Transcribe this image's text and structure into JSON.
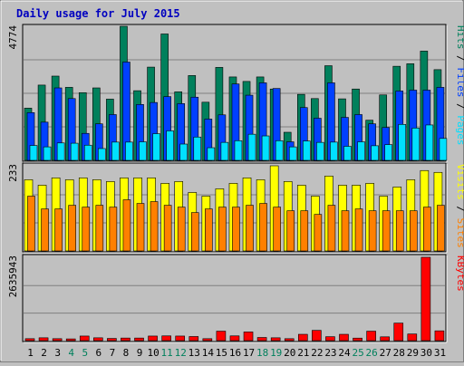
{
  "title": "Daily usage for July 2015",
  "colors": {
    "background": "#c0c0c0",
    "title": "#0000c0",
    "hits": "#00805c",
    "files": "#0040ff",
    "pages": "#00e0ff",
    "visits": "#ffff00",
    "sites": "#ff8000",
    "kbytes": "#ff0000",
    "weekend_day": "#00805c",
    "weekday": "#000000"
  },
  "chart_data": [
    {
      "type": "bar",
      "panel": "hits-files-pages",
      "ymax_label": "4774",
      "legend": {
        "pages": "Pages",
        "files": "Files",
        "hits": "Hits",
        "sep": " / "
      },
      "ylim": [
        0,
        4774
      ],
      "categories": [
        "1",
        "2",
        "3",
        "4",
        "5",
        "6",
        "7",
        "8",
        "9",
        "10",
        "11",
        "12",
        "13",
        "14",
        "15",
        "16",
        "17",
        "18",
        "19",
        "20",
        "21",
        "22",
        "23",
        "24",
        "25",
        "26",
        "27",
        "28",
        "29",
        "30",
        "31"
      ],
      "series": [
        {
          "name": "Hits",
          "values": [
            1860,
            2680,
            3000,
            2600,
            2410,
            2580,
            2180,
            4774,
            2480,
            3320,
            4500,
            2440,
            3020,
            2070,
            3310,
            2970,
            2810,
            2970,
            2540,
            1000,
            2350,
            2200,
            3370,
            2190,
            2540,
            1430,
            2330,
            3350,
            3440,
            3890,
            3230
          ]
        },
        {
          "name": "Files",
          "values": [
            1700,
            1360,
            2580,
            2200,
            960,
            1300,
            1630,
            3500,
            1990,
            2060,
            2270,
            2020,
            2250,
            1470,
            1620,
            2720,
            2320,
            2760,
            2560,
            660,
            1880,
            1500,
            2760,
            1530,
            1630,
            1300,
            1170,
            2470,
            2500,
            2500,
            2600
          ]
        },
        {
          "name": "Pages",
          "values": [
            530,
            480,
            620,
            610,
            540,
            420,
            650,
            650,
            660,
            950,
            1050,
            580,
            830,
            450,
            640,
            700,
            930,
            870,
            700,
            480,
            690,
            640,
            650,
            500,
            660,
            520,
            560,
            1280,
            1150,
            1260,
            780
          ]
        }
      ]
    },
    {
      "type": "bar",
      "panel": "visits-sites",
      "ymax_label": "233",
      "legend": {
        "sites": "Sites",
        "visits": "Visits",
        "sep": " / "
      },
      "ylim": [
        0,
        233
      ],
      "categories": [
        "1",
        "2",
        "3",
        "4",
        "5",
        "6",
        "7",
        "8",
        "9",
        "10",
        "11",
        "12",
        "13",
        "14",
        "15",
        "16",
        "17",
        "18",
        "19",
        "20",
        "21",
        "22",
        "23",
        "24",
        "25",
        "26",
        "27",
        "28",
        "29",
        "30",
        "31"
      ],
      "series": [
        {
          "name": "Visits",
          "values": [
            195,
            180,
            200,
            195,
            200,
            195,
            190,
            200,
            200,
            200,
            185,
            190,
            160,
            150,
            170,
            185,
            200,
            195,
            233,
            190,
            180,
            150,
            205,
            180,
            180,
            185,
            150,
            175,
            195,
            220,
            215
          ]
        },
        {
          "name": "Sites",
          "values": [
            150,
            115,
            115,
            125,
            120,
            125,
            120,
            140,
            130,
            135,
            125,
            120,
            105,
            115,
            120,
            120,
            125,
            130,
            120,
            110,
            110,
            100,
            125,
            110,
            115,
            110,
            110,
            110,
            110,
            120,
            125
          ]
        }
      ]
    },
    {
      "type": "bar",
      "panel": "kbytes",
      "ymax_label": "2635943",
      "legend": {
        "kbytes": "KBytes"
      },
      "ylim": [
        0,
        2635943
      ],
      "categories": [
        "1",
        "2",
        "3",
        "4",
        "5",
        "6",
        "7",
        "8",
        "9",
        "10",
        "11",
        "12",
        "13",
        "14",
        "15",
        "16",
        "17",
        "18",
        "19",
        "20",
        "21",
        "22",
        "23",
        "24",
        "25",
        "26",
        "27",
        "28",
        "29",
        "30",
        "31"
      ],
      "series": [
        {
          "name": "KBytes",
          "values": [
            62000,
            90000,
            62000,
            55000,
            145000,
            90000,
            70000,
            82000,
            82000,
            145000,
            150000,
            145000,
            130000,
            62000,
            300000,
            150000,
            275000,
            100000,
            90000,
            62000,
            200000,
            325000,
            125000,
            200000,
            80000,
            300000,
            120000,
            555000,
            210000,
            2635943,
            310000
          ]
        }
      ]
    }
  ],
  "x_labels": {
    "days": [
      "1",
      "2",
      "3",
      "4",
      "5",
      "6",
      "7",
      "8",
      "9",
      "10",
      "11",
      "12",
      "13",
      "14",
      "15",
      "16",
      "17",
      "18",
      "19",
      "20",
      "21",
      "22",
      "23",
      "24",
      "25",
      "26",
      "27",
      "28",
      "29",
      "30",
      "31"
    ],
    "weekend": [
      4,
      5,
      11,
      12,
      18,
      19,
      25,
      26
    ]
  }
}
